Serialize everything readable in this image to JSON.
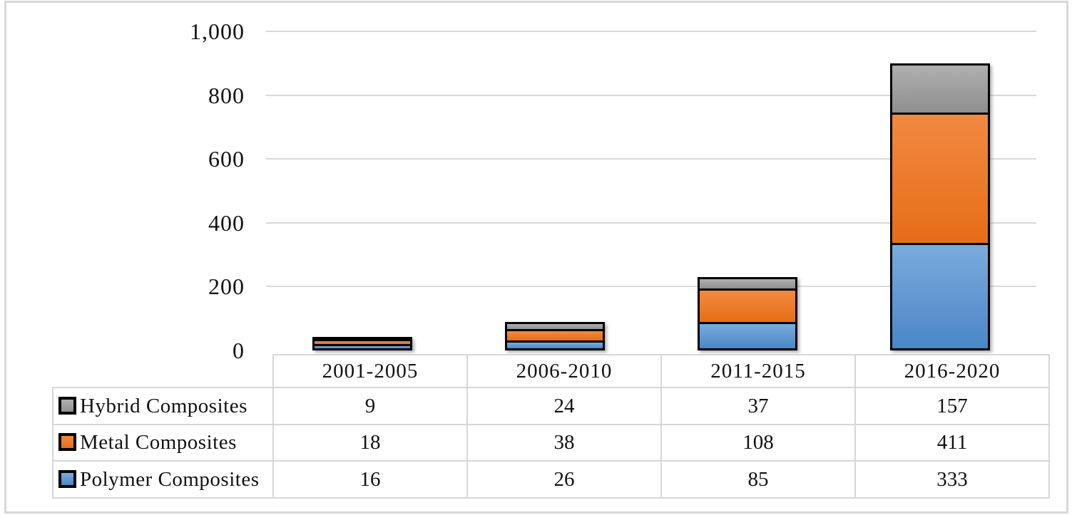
{
  "figure": {
    "background": "#ffffff",
    "frame_color": "#d8d8d8",
    "gridline_color": "#d9d9d9",
    "table_border_color": "#d6d6d6",
    "bar_border_color": "#000000"
  },
  "chart_data": {
    "type": "bar",
    "stacked": true,
    "title": "",
    "xlabel": "",
    "ylabel": "",
    "categories": [
      "2001-2005",
      "2006-2010",
      "2011-2015",
      "2016-2020"
    ],
    "series": [
      {
        "name": "Polymer Composites",
        "values": [
          16,
          26,
          85,
          333
        ],
        "color": "#5B9BD5",
        "gradient_top": "#7AABDD",
        "gradient_bottom": "#4A86C6"
      },
      {
        "name": "Metal Composites",
        "values": [
          18,
          38,
          108,
          411
        ],
        "color": "#ED7D31",
        "gradient_top": "#F28940",
        "gradient_bottom": "#E66D17"
      },
      {
        "name": "Hybrid Composites",
        "values": [
          9,
          24,
          37,
          157
        ],
        "color": "#A5A5A5",
        "gradient_top": "#AFAFAF",
        "gradient_bottom": "#8F8F8F"
      }
    ],
    "ylim": [
      0,
      1000
    ],
    "y_ticks": [
      0,
      200,
      400,
      600,
      800,
      1000
    ],
    "y_tick_labels": [
      "0",
      "200",
      "400",
      "600",
      "800",
      "1,000"
    ],
    "grid": true,
    "legend_position": "table-left-of-data-table"
  },
  "data_table": {
    "header_labels": [
      "2001-2005",
      "2006-2010",
      "2011-2015",
      "2016-2020"
    ],
    "rows": [
      {
        "series": "Hybrid Composites",
        "values": [
          9,
          24,
          37,
          157
        ]
      },
      {
        "series": "Metal Composites",
        "values": [
          18,
          38,
          108,
          411
        ]
      },
      {
        "series": "Polymer Composites",
        "values": [
          16,
          26,
          85,
          333
        ]
      }
    ]
  }
}
